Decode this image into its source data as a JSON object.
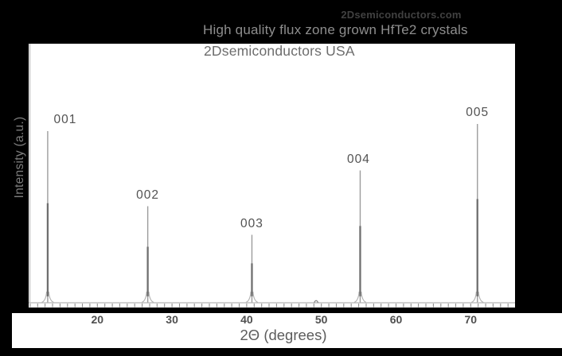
{
  "header": {
    "watermark": "2Dsemiconductors.com",
    "title": "High quality flux zone grown HfTe2 crystals",
    "subtitle": "2Dsemiconductors USA"
  },
  "colors": {
    "background": "#000000",
    "plot_background": "#ffffff",
    "trace": "#9c9c9c",
    "trace_dark": "#6f6f6f",
    "trace_foot": "#b3b3b3",
    "axis": "#b5b5b5",
    "tick": "#8f8f8f",
    "label_text": "#525252"
  },
  "chart_data": {
    "type": "line",
    "subtype": "xrd-pattern",
    "title": "High quality flux zone grown HfTe2 crystals",
    "subtitle": "2Dsemiconductors USA",
    "xlabel": "2Θ (degrees)",
    "ylabel": "Intensity (a.u.)",
    "grid": false,
    "legend": "none",
    "x_axis": {
      "min": 11,
      "max": 76,
      "ticks": [
        20,
        30,
        40,
        50,
        60,
        70
      ],
      "tick_labels": [
        "20",
        "30",
        "40",
        "50",
        "60",
        "70"
      ],
      "minor_tick_step_degrees": 1
    },
    "y_axis": {
      "units": "arbitrary",
      "tick_labels": []
    },
    "peaks": [
      {
        "label": "001",
        "two_theta": 13.35,
        "rel_intensity": 96,
        "label_dx": 22
      },
      {
        "label": "002",
        "two_theta": 26.75,
        "rel_intensity": 54,
        "label_dx": 0
      },
      {
        "label": "003",
        "two_theta": 40.7,
        "rel_intensity": 38,
        "label_dx": 0
      },
      {
        "label": "004",
        "two_theta": 55.2,
        "rel_intensity": 74,
        "label_dx": -2
      },
      {
        "label": "005",
        "two_theta": 70.9,
        "rel_intensity": 100,
        "label_dx": 0
      }
    ],
    "noise_blip": {
      "two_theta": 49.3,
      "rel_intensity": 2
    }
  }
}
